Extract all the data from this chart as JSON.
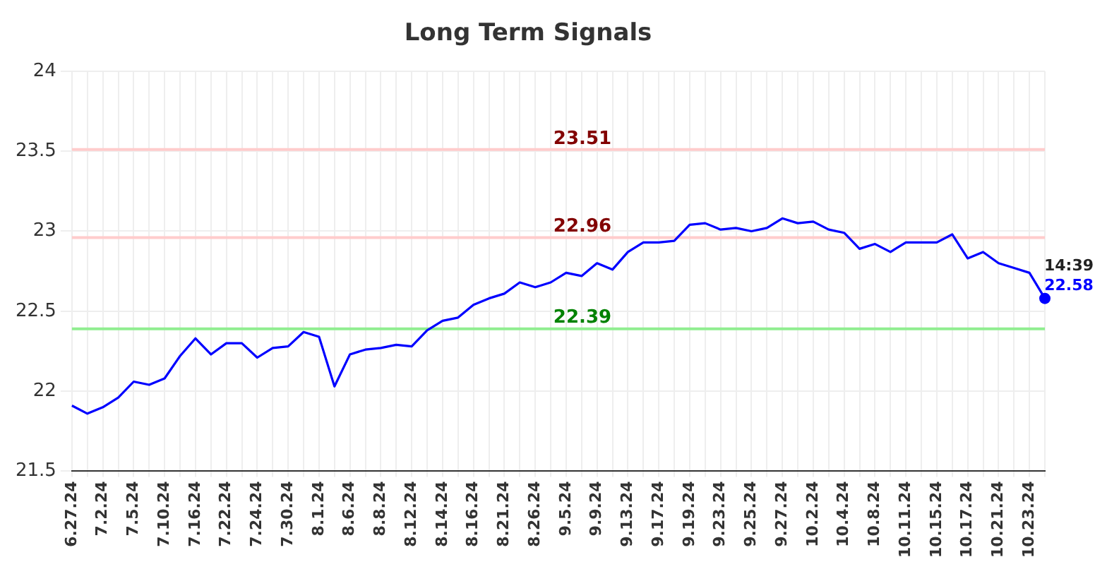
{
  "chart_data": {
    "type": "line",
    "title": "Long Term Signals",
    "categories": [
      "6.27.24",
      null,
      "7.2.24",
      null,
      "7.5.24",
      null,
      "7.10.24",
      null,
      "7.16.24",
      null,
      "7.22.24",
      null,
      "7.24.24",
      null,
      "7.30.24",
      null,
      "8.1.24",
      null,
      "8.6.24",
      null,
      "8.8.24",
      null,
      "8.12.24",
      null,
      "8.14.24",
      null,
      "8.16.24",
      null,
      "8.21.24",
      null,
      "8.26.24",
      null,
      "9.5.24",
      null,
      "9.9.24",
      null,
      "9.13.24",
      null,
      "9.17.24",
      null,
      "9.19.24",
      null,
      "9.23.24",
      null,
      "9.25.24",
      null,
      "9.27.24",
      null,
      "10.2.24",
      null,
      "10.4.24",
      null,
      "10.8.24",
      null,
      "10.11.24",
      null,
      "10.15.24",
      null,
      "10.17.24",
      null,
      "10.21.24",
      null,
      "10.23.24",
      null
    ],
    "series": [
      {
        "color": "#0000ff",
        "values": [
          21.91,
          21.86,
          21.9,
          21.96,
          22.06,
          22.04,
          22.08,
          22.22,
          22.33,
          22.23,
          22.3,
          22.3,
          22.21,
          22.27,
          22.28,
          22.37,
          22.34,
          22.03,
          22.23,
          22.26,
          22.27,
          22.29,
          22.28,
          22.38,
          22.44,
          22.46,
          22.54,
          22.58,
          22.61,
          22.68,
          22.65,
          22.68,
          22.74,
          22.72,
          22.8,
          22.76,
          22.87,
          22.93,
          22.93,
          22.94,
          23.04,
          23.05,
          23.01,
          23.02,
          23.0,
          23.02,
          23.08,
          23.05,
          23.06,
          23.01,
          22.99,
          22.89,
          22.92,
          22.87,
          22.93,
          22.93,
          22.93,
          22.98,
          22.83,
          22.87,
          22.8,
          22.77,
          22.74,
          22.58
        ],
        "value_labels": [
          null,
          null,
          null,
          null,
          null,
          null,
          null,
          null,
          null,
          null,
          null,
          null,
          null,
          null,
          null,
          null,
          null,
          null,
          null,
          null,
          null,
          null,
          null,
          null,
          null,
          null,
          null,
          null,
          null,
          null,
          null,
          null,
          null,
          null,
          null,
          null,
          null,
          null,
          null,
          null,
          null,
          null,
          null,
          null,
          null,
          null,
          null,
          null,
          null,
          null,
          null,
          null,
          null,
          null,
          null,
          null,
          null,
          null,
          null,
          null,
          null,
          null,
          null,
          "22.58"
        ]
      }
    ],
    "ylim": [
      21.5,
      24
    ],
    "yticks": [
      21.5,
      22,
      22.5,
      23,
      23.5,
      24
    ],
    "grid": true,
    "legend": false,
    "marker": "none",
    "ref_lines": [
      {
        "axis": "y",
        "value": 23.51,
        "label": "23.51",
        "color": "#ffcccc"
      },
      {
        "axis": "y",
        "value": 22.96,
        "label": "22.96",
        "color": "#ffcccc"
      },
      {
        "axis": "y",
        "value": 22.39,
        "label": "22.39",
        "color": "#90ee90"
      }
    ],
    "annotations": [
      "14:39"
    ]
  }
}
